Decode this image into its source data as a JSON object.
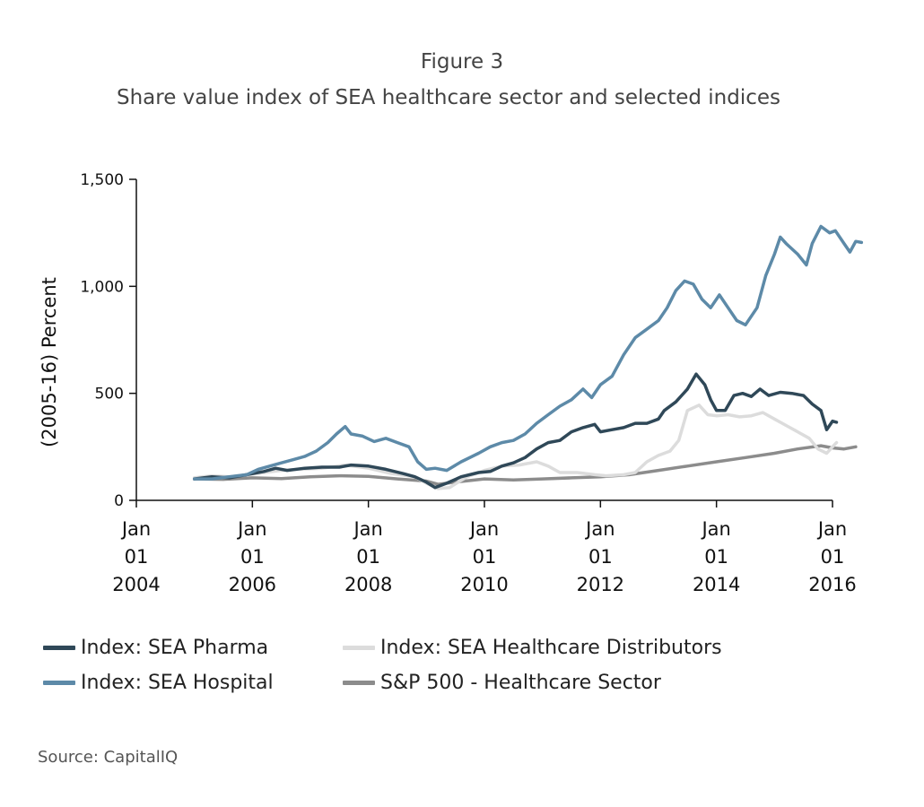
{
  "figure_label": "Figure 3",
  "title": "Share value index of SEA healthcare sector and selected indices",
  "source": "Source: CapitalIQ",
  "chart_data": {
    "type": "line",
    "ylabel": "(2005-16) Percent",
    "xlabel": "",
    "ylim": [
      0,
      1500
    ],
    "yticks": [
      0,
      500,
      1000,
      1500
    ],
    "ytick_labels": [
      "0",
      "500",
      "1,000",
      "1,500"
    ],
    "xlim": [
      2004.0,
      2016.0
    ],
    "xticks": [
      {
        "year": 2004,
        "label": [
          "Jan",
          "01",
          "2004"
        ]
      },
      {
        "year": 2006,
        "label": [
          "Jan",
          "01",
          "2006"
        ]
      },
      {
        "year": 2008,
        "label": [
          "Jan",
          "01",
          "2008"
        ]
      },
      {
        "year": 2010,
        "label": [
          "Jan",
          "01",
          "2010"
        ]
      },
      {
        "year": 2012,
        "label": [
          "Jan",
          "01",
          "2012"
        ]
      },
      {
        "year": 2014,
        "label": [
          "Jan",
          "01",
          "2014"
        ]
      },
      {
        "year": 2016,
        "label": [
          "Jan",
          "01",
          "2016"
        ]
      }
    ],
    "grid": false,
    "legend_position": "bottom",
    "series": [
      {
        "name": "Index: SEA Pharma",
        "color": "#2f4858",
        "points": [
          [
            2005.0,
            100
          ],
          [
            2005.3,
            110
          ],
          [
            2005.6,
            105
          ],
          [
            2005.9,
            120
          ],
          [
            2006.2,
            135
          ],
          [
            2006.4,
            150
          ],
          [
            2006.6,
            140
          ],
          [
            2006.9,
            150
          ],
          [
            2007.2,
            155
          ],
          [
            2007.5,
            155
          ],
          [
            2007.7,
            165
          ],
          [
            2008.0,
            160
          ],
          [
            2008.3,
            145
          ],
          [
            2008.6,
            125
          ],
          [
            2008.8,
            110
          ],
          [
            2009.0,
            85
          ],
          [
            2009.15,
            60
          ],
          [
            2009.35,
            80
          ],
          [
            2009.6,
            110
          ],
          [
            2009.9,
            130
          ],
          [
            2010.1,
            135
          ],
          [
            2010.3,
            160
          ],
          [
            2010.5,
            175
          ],
          [
            2010.7,
            200
          ],
          [
            2010.9,
            240
          ],
          [
            2011.1,
            270
          ],
          [
            2011.3,
            280
          ],
          [
            2011.5,
            320
          ],
          [
            2011.7,
            340
          ],
          [
            2011.9,
            355
          ],
          [
            2012.0,
            320
          ],
          [
            2012.2,
            330
          ],
          [
            2012.4,
            340
          ],
          [
            2012.6,
            360
          ],
          [
            2012.8,
            360
          ],
          [
            2013.0,
            380
          ],
          [
            2013.1,
            420
          ],
          [
            2013.3,
            460
          ],
          [
            2013.5,
            520
          ],
          [
            2013.65,
            590
          ],
          [
            2013.8,
            540
          ],
          [
            2013.9,
            470
          ],
          [
            2014.0,
            420
          ],
          [
            2014.15,
            420
          ],
          [
            2014.3,
            490
          ],
          [
            2014.45,
            500
          ],
          [
            2014.6,
            485
          ],
          [
            2014.75,
            520
          ],
          [
            2014.9,
            490
          ],
          [
            2015.1,
            505
          ],
          [
            2015.3,
            500
          ],
          [
            2015.5,
            490
          ],
          [
            2015.65,
            450
          ],
          [
            2015.8,
            420
          ],
          [
            2015.9,
            330
          ],
          [
            2016.0,
            370
          ],
          [
            2016.07,
            365
          ]
        ]
      },
      {
        "name": "Index: SEA Healthcare Distributors",
        "color": "#dcdcdc",
        "points": [
          [
            2005.0,
            105
          ],
          [
            2005.3,
            115
          ],
          [
            2005.6,
            110
          ],
          [
            2005.9,
            120
          ],
          [
            2006.2,
            130
          ],
          [
            2006.5,
            140
          ],
          [
            2006.8,
            145
          ],
          [
            2007.2,
            150
          ],
          [
            2007.6,
            165
          ],
          [
            2008.0,
            150
          ],
          [
            2008.4,
            125
          ],
          [
            2008.8,
            110
          ],
          [
            2009.0,
            80
          ],
          [
            2009.2,
            55
          ],
          [
            2009.4,
            60
          ],
          [
            2009.7,
            110
          ],
          [
            2010.0,
            140
          ],
          [
            2010.3,
            160
          ],
          [
            2010.6,
            165
          ],
          [
            2010.9,
            180
          ],
          [
            2011.1,
            160
          ],
          [
            2011.3,
            130
          ],
          [
            2011.6,
            130
          ],
          [
            2011.9,
            120
          ],
          [
            2012.1,
            115
          ],
          [
            2012.4,
            120
          ],
          [
            2012.6,
            130
          ],
          [
            2012.8,
            180
          ],
          [
            2013.0,
            210
          ],
          [
            2013.2,
            230
          ],
          [
            2013.35,
            280
          ],
          [
            2013.5,
            420
          ],
          [
            2013.7,
            445
          ],
          [
            2013.85,
            400
          ],
          [
            2014.0,
            395
          ],
          [
            2014.2,
            400
          ],
          [
            2014.4,
            390
          ],
          [
            2014.6,
            395
          ],
          [
            2014.8,
            410
          ],
          [
            2015.0,
            380
          ],
          [
            2015.2,
            350
          ],
          [
            2015.4,
            320
          ],
          [
            2015.6,
            290
          ],
          [
            2015.75,
            240
          ],
          [
            2015.9,
            220
          ],
          [
            2016.0,
            250
          ],
          [
            2016.07,
            270
          ]
        ]
      },
      {
        "name": "Index: SEA Hospital",
        "color": "#5d8aa8",
        "points": [
          [
            2005.0,
            100
          ],
          [
            2005.3,
            100
          ],
          [
            2005.6,
            110
          ],
          [
            2005.9,
            120
          ],
          [
            2006.1,
            145
          ],
          [
            2006.3,
            160
          ],
          [
            2006.5,
            175
          ],
          [
            2006.7,
            190
          ],
          [
            2006.9,
            205
          ],
          [
            2007.1,
            230
          ],
          [
            2007.3,
            270
          ],
          [
            2007.45,
            310
          ],
          [
            2007.6,
            345
          ],
          [
            2007.7,
            310
          ],
          [
            2007.9,
            300
          ],
          [
            2008.1,
            275
          ],
          [
            2008.3,
            290
          ],
          [
            2008.5,
            270
          ],
          [
            2008.7,
            250
          ],
          [
            2008.85,
            180
          ],
          [
            2009.0,
            145
          ],
          [
            2009.15,
            150
          ],
          [
            2009.35,
            140
          ],
          [
            2009.6,
            180
          ],
          [
            2009.9,
            220
          ],
          [
            2010.1,
            250
          ],
          [
            2010.3,
            270
          ],
          [
            2010.5,
            280
          ],
          [
            2010.7,
            310
          ],
          [
            2010.9,
            360
          ],
          [
            2011.1,
            400
          ],
          [
            2011.3,
            440
          ],
          [
            2011.5,
            470
          ],
          [
            2011.7,
            520
          ],
          [
            2011.85,
            480
          ],
          [
            2012.0,
            540
          ],
          [
            2012.2,
            580
          ],
          [
            2012.4,
            680
          ],
          [
            2012.6,
            760
          ],
          [
            2012.8,
            800
          ],
          [
            2013.0,
            840
          ],
          [
            2013.15,
            900
          ],
          [
            2013.3,
            980
          ],
          [
            2013.45,
            1025
          ],
          [
            2013.6,
            1010
          ],
          [
            2013.75,
            940
          ],
          [
            2013.9,
            900
          ],
          [
            2014.05,
            960
          ],
          [
            2014.2,
            900
          ],
          [
            2014.35,
            840
          ],
          [
            2014.5,
            820
          ],
          [
            2014.7,
            900
          ],
          [
            2014.85,
            1050
          ],
          [
            2015.0,
            1150
          ],
          [
            2015.1,
            1230
          ],
          [
            2015.2,
            1200
          ],
          [
            2015.4,
            1150
          ],
          [
            2015.55,
            1100
          ],
          [
            2015.65,
            1200
          ],
          [
            2015.8,
            1280
          ],
          [
            2015.95,
            1250
          ],
          [
            2016.05,
            1260
          ],
          [
            2016.2,
            1200
          ],
          [
            2016.3,
            1160
          ],
          [
            2016.4,
            1210
          ],
          [
            2016.5,
            1205
          ]
        ]
      },
      {
        "name": "S&P 500 - Healthcare Sector",
        "color": "#8c8c8c",
        "points": [
          [
            2005.0,
            100
          ],
          [
            2005.5,
            98
          ],
          [
            2006.0,
            105
          ],
          [
            2006.5,
            102
          ],
          [
            2007.0,
            110
          ],
          [
            2007.5,
            115
          ],
          [
            2008.0,
            112
          ],
          [
            2008.5,
            100
          ],
          [
            2009.0,
            90
          ],
          [
            2009.2,
            75
          ],
          [
            2009.5,
            85
          ],
          [
            2010.0,
            100
          ],
          [
            2010.5,
            95
          ],
          [
            2011.0,
            100
          ],
          [
            2011.5,
            105
          ],
          [
            2012.0,
            110
          ],
          [
            2012.5,
            120
          ],
          [
            2013.0,
            140
          ],
          [
            2013.5,
            160
          ],
          [
            2014.0,
            180
          ],
          [
            2014.5,
            200
          ],
          [
            2015.0,
            220
          ],
          [
            2015.4,
            240
          ],
          [
            2015.8,
            255
          ],
          [
            2016.0,
            245
          ],
          [
            2016.2,
            240
          ],
          [
            2016.4,
            250
          ]
        ]
      }
    ]
  }
}
